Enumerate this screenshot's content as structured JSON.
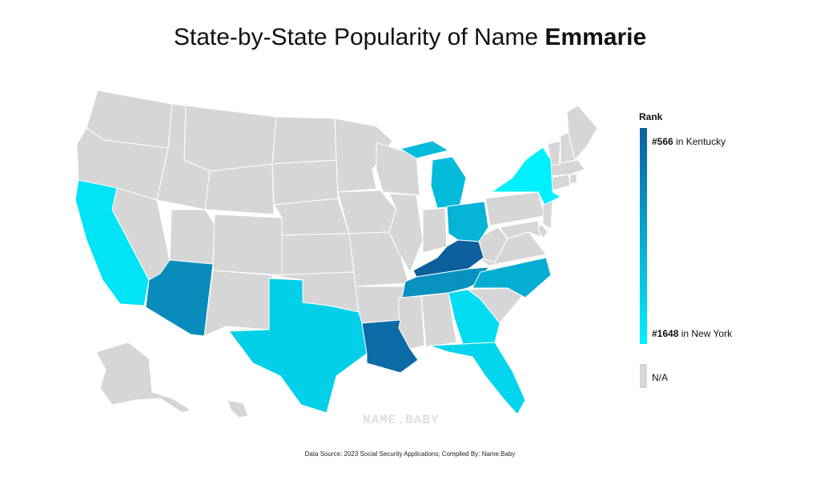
{
  "title_prefix": "State-by-State Popularity of Name ",
  "title_name": "Emmarie",
  "colors": {
    "na": "#d6d6d6",
    "rank_high": "#0d5f9e",
    "rank_low": "#00f0ff",
    "background": "#ffffff"
  },
  "legend": {
    "title": "Rank",
    "top_rank": "#566",
    "top_state": " in Kentucky",
    "bottom_rank": "#1648",
    "bottom_state": " in New York",
    "na_label": "N/A"
  },
  "watermark": "NAME.BABY",
  "source": "Data Source: 2023 Social Security Applications; Compiled By: Name.Baby",
  "states": [
    {
      "name": "Kentucky",
      "rank": 566
    },
    {
      "name": "Louisiana",
      "rank": 650
    },
    {
      "name": "Arizona",
      "rank": 900
    },
    {
      "name": "Tennessee",
      "rank": 950
    },
    {
      "name": "North Carolina",
      "rank": 1150
    },
    {
      "name": "Ohio",
      "rank": 1200
    },
    {
      "name": "Michigan",
      "rank": 1250
    },
    {
      "name": "Texas",
      "rank": 1400
    },
    {
      "name": "Georgia",
      "rank": 1500
    },
    {
      "name": "Florida",
      "rank": 1450
    },
    {
      "name": "California",
      "rank": 1550
    },
    {
      "name": "New York",
      "rank": 1648
    }
  ]
}
